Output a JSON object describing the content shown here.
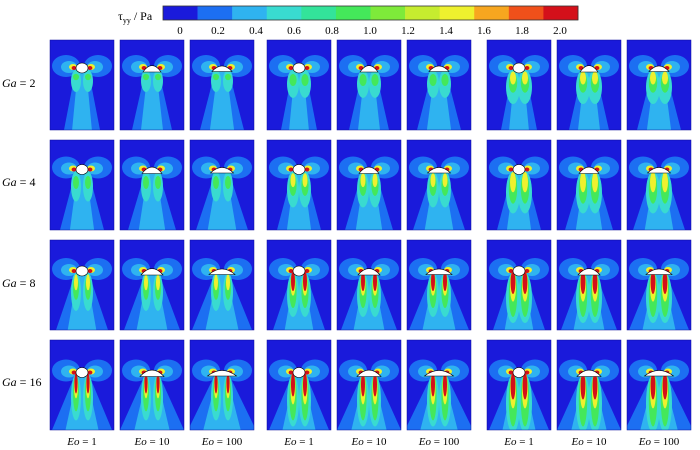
{
  "colorbar": {
    "label_html_parts": {
      "tau": "τ",
      "sub": "yy",
      "unit": " / Pa"
    },
    "ticks": [
      "0",
      "0.2",
      "0.4",
      "0.6",
      "0.8",
      "1.0",
      "1.2",
      "1.4",
      "1.6",
      "1.8",
      "2.0"
    ],
    "colors": [
      "#1a1adb",
      "#1c6ff2",
      "#2fb3f0",
      "#39dbd0",
      "#33e39a",
      "#44e85a",
      "#7eea3a",
      "#c6ec2f",
      "#eef12e",
      "#f7a61f",
      "#f0501a",
      "#d4101a"
    ]
  },
  "rows": [
    {
      "var": "Ga",
      "value": "2"
    },
    {
      "var": "Ga",
      "value": "4"
    },
    {
      "var": "Ga",
      "value": "8"
    },
    {
      "var": "Ga",
      "value": "16"
    }
  ],
  "columns": [
    {
      "var": "Eo",
      "value": "1"
    },
    {
      "var": "Eo",
      "value": "10"
    },
    {
      "var": "Eo",
      "value": "100"
    },
    {
      "var": "Eo",
      "value": "1"
    },
    {
      "var": "Eo",
      "value": "10"
    },
    {
      "var": "Eo",
      "value": "100"
    },
    {
      "var": "Eo",
      "value": "1"
    },
    {
      "var": "Eo",
      "value": "10"
    },
    {
      "var": "Eo",
      "value": "100"
    }
  ],
  "palette": {
    "deep": "#1a1adb",
    "blue": "#1c6ff2",
    "light_blue": "#2fb3f0",
    "cyan": "#39dbd0",
    "green": "#44e85a",
    "yellow": "#eef12e",
    "orange": "#f7a61f",
    "red": "#d4101a"
  }
}
